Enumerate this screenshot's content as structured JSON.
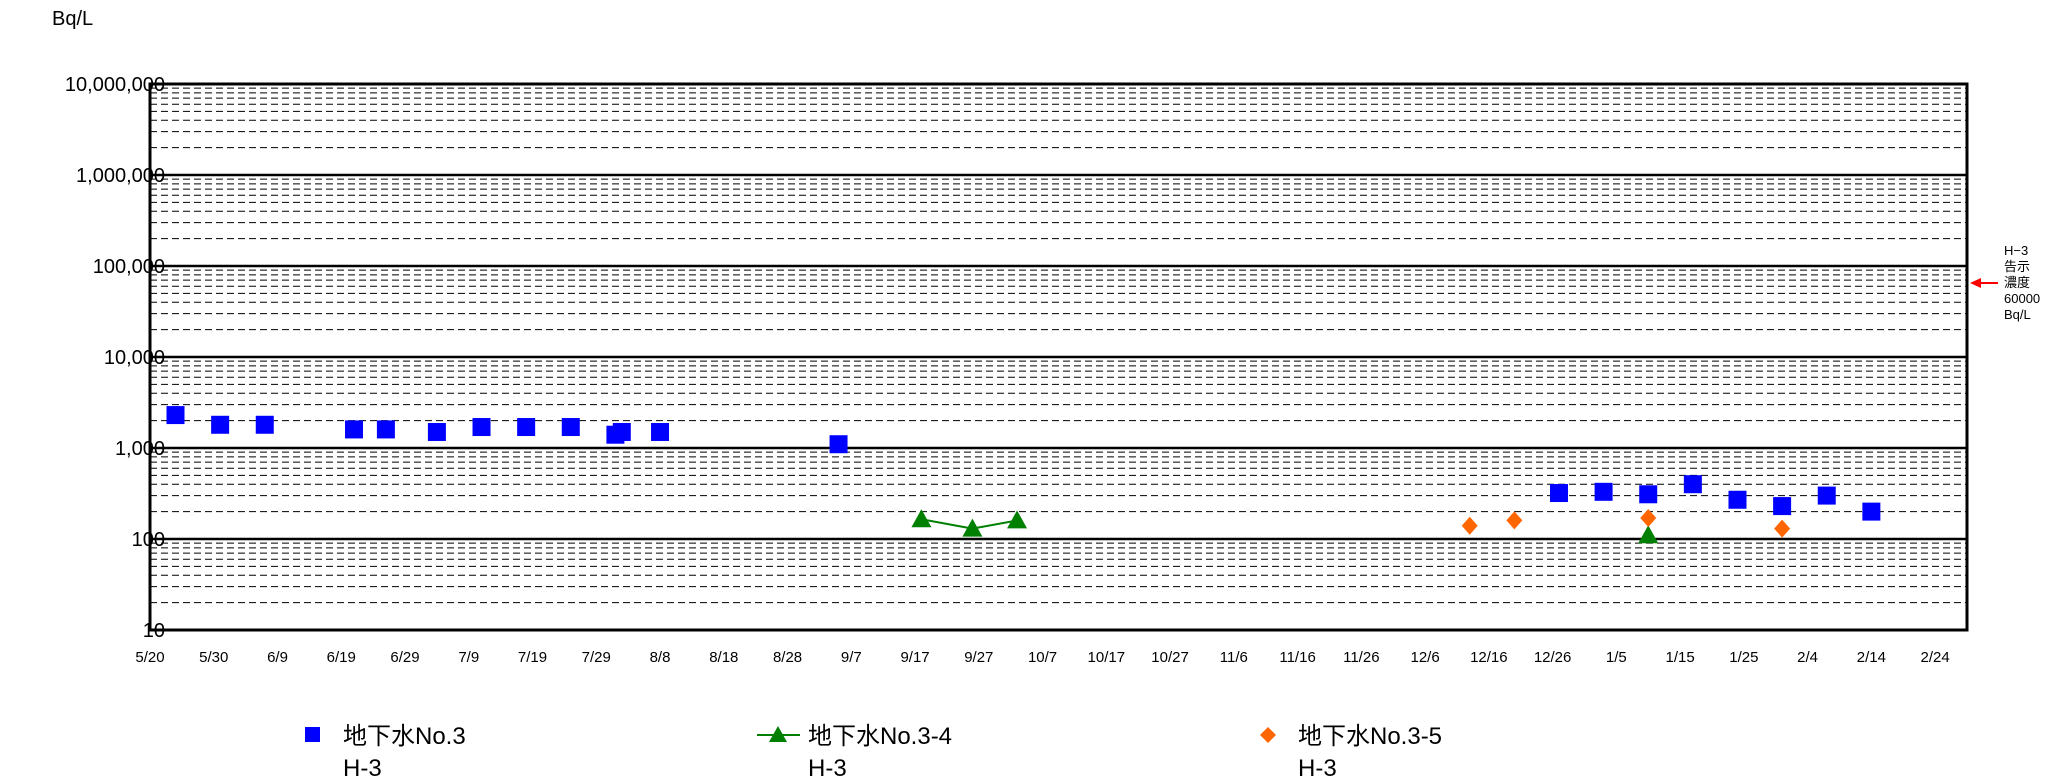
{
  "chart_data": {
    "type": "scatter",
    "y_unit": "Bq/L",
    "y_scale": "log",
    "ylim": [
      10,
      10000000
    ],
    "y_tick_labels": [
      "10",
      "100",
      "1,000",
      "10,000",
      "100,000",
      "1,000,000",
      "10,000,000"
    ],
    "x_start": "5/20",
    "x_end": "3/1",
    "x_tick_labels": [
      "5/20",
      "5/30",
      "6/9",
      "6/19",
      "6/29",
      "7/9",
      "7/19",
      "7/29",
      "8/8",
      "8/18",
      "8/28",
      "9/7",
      "9/17",
      "9/27",
      "10/7",
      "10/17",
      "10/27",
      "11/6",
      "11/16",
      "11/26",
      "12/6",
      "12/16",
      "12/26",
      "1/5",
      "1/15",
      "1/25",
      "2/4",
      "2/14",
      "2/24"
    ],
    "grid": true,
    "legend_position": "bottom",
    "reference_line": {
      "value": 60000,
      "color": "#ff0000",
      "label_lines": [
        "H−3",
        "告示",
        "濃度",
        "60000",
        "Bq/L"
      ]
    },
    "series": [
      {
        "name_line1": "地下水No.3",
        "name_line2": "H-3",
        "marker": "square",
        "color": "#0000ff",
        "connected": false,
        "points": [
          {
            "x": "5/24",
            "y": 2300
          },
          {
            "x": "5/31",
            "y": 1800
          },
          {
            "x": "6/7",
            "y": 1800
          },
          {
            "x": "6/21",
            "y": 1600
          },
          {
            "x": "6/26",
            "y": 1600
          },
          {
            "x": "7/4",
            "y": 1500
          },
          {
            "x": "7/11",
            "y": 1700
          },
          {
            "x": "7/18",
            "y": 1700
          },
          {
            "x": "7/25",
            "y": 1700
          },
          {
            "x": "8/1",
            "y": 1400
          },
          {
            "x": "8/2",
            "y": 1500
          },
          {
            "x": "8/8",
            "y": 1500
          },
          {
            "x": "9/5",
            "y": 1100
          },
          {
            "x": "12/27",
            "y": 320
          },
          {
            "x": "1/3",
            "y": 330
          },
          {
            "x": "1/10",
            "y": 310
          },
          {
            "x": "1/17",
            "y": 400
          },
          {
            "x": "1/24",
            "y": 270
          },
          {
            "x": "1/31",
            "y": 230
          },
          {
            "x": "2/7",
            "y": 300
          },
          {
            "x": "2/14",
            "y": 200
          }
        ]
      },
      {
        "name_line1": "地下水No.3-4",
        "name_line2": "H-3",
        "marker": "triangle",
        "color": "#008000",
        "connected": true,
        "points": [
          {
            "x": "9/18",
            "y": 165
          },
          {
            "x": "9/26",
            "y": 130
          },
          {
            "x": "10/3",
            "y": 160
          }
        ],
        "isolated_points": [
          {
            "x": "1/10",
            "y": 110
          }
        ]
      },
      {
        "name_line1": "地下水No.3-5",
        "name_line2": "H-3",
        "marker": "diamond",
        "color": "#ff6600",
        "connected": false,
        "points": [
          {
            "x": "12/13",
            "y": 140
          },
          {
            "x": "12/20",
            "y": 160
          },
          {
            "x": "1/10",
            "y": 170
          },
          {
            "x": "1/31",
            "y": 130
          }
        ]
      }
    ]
  }
}
